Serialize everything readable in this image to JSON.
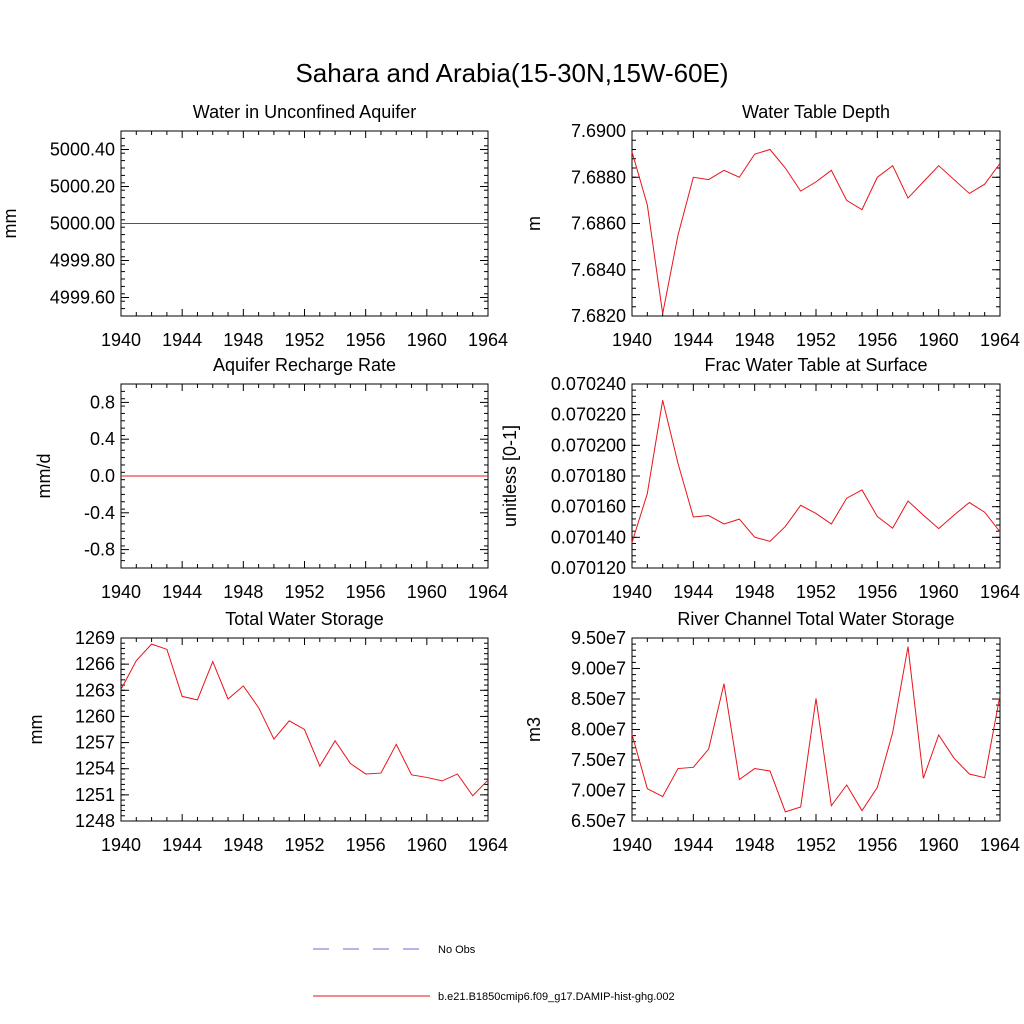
{
  "suptitle": "Sahara and Arabia(15-30N,15W-60E)",
  "legend": {
    "placement": "bottom-center",
    "entries": [
      {
        "label": "No Obs",
        "color": "#6b6bd6",
        "dash": "dashed"
      },
      {
        "label": "b.e21.B1850cmip6.f09_g17.DAMIP-hist-ghg.002",
        "color": "#e8141b",
        "dash": "solid"
      }
    ]
  },
  "colors": {
    "series": "#e8141b",
    "axis": "#000000"
  },
  "chart_data": [
    {
      "type": "line",
      "title": "Water in Unconfined Aquifer",
      "ylabel": "mm",
      "xlabel": "",
      "xlim": [
        1940,
        1964
      ],
      "ylim": [
        4999.5,
        5000.5
      ],
      "xticks": [
        "1940",
        "1944",
        "1948",
        "1952",
        "1956",
        "1960",
        "1964"
      ],
      "yticks": [
        "4999.60",
        "4999.80",
        "5000.00",
        "5000.20",
        "5000.40"
      ],
      "grid": false,
      "x": [
        1940,
        1941,
        1942,
        1943,
        1944,
        1945,
        1946,
        1947,
        1948,
        1949,
        1950,
        1951,
        1952,
        1953,
        1954,
        1955,
        1956,
        1957,
        1958,
        1959,
        1960,
        1961,
        1962,
        1963,
        1964
      ],
      "values": [
        5000,
        5000,
        5000,
        5000,
        5000,
        5000,
        5000,
        5000,
        5000,
        5000,
        5000,
        5000,
        5000,
        5000,
        5000,
        5000,
        5000,
        5000,
        5000,
        5000,
        5000,
        5000,
        5000,
        5000,
        5000
      ]
    },
    {
      "type": "line",
      "title": "Water Table Depth",
      "ylabel": "m",
      "xlabel": "",
      "xlim": [
        1940,
        1964
      ],
      "ylim": [
        7.682,
        7.69
      ],
      "xticks": [
        "1940",
        "1944",
        "1948",
        "1952",
        "1956",
        "1960",
        "1964"
      ],
      "yticks": [
        "7.6820",
        "7.6840",
        "7.6860",
        "7.6880",
        "7.6900"
      ],
      "grid": false,
      "x": [
        1940,
        1941,
        1942,
        1943,
        1944,
        1945,
        1946,
        1947,
        1948,
        1949,
        1950,
        1951,
        1952,
        1953,
        1954,
        1955,
        1956,
        1957,
        1958,
        1959,
        1960,
        1961,
        1962,
        1963,
        1964
      ],
      "values": [
        7.6891,
        7.6868,
        7.6821,
        7.6855,
        7.688,
        7.6879,
        7.6883,
        7.688,
        7.689,
        7.6892,
        7.6884,
        7.6874,
        7.6878,
        7.6883,
        7.687,
        7.6866,
        7.688,
        7.6885,
        7.6871,
        7.6878,
        7.6885,
        7.6879,
        7.6873,
        7.6877,
        7.6886
      ]
    },
    {
      "type": "line",
      "title": "Aquifer Recharge Rate",
      "ylabel": "mm/d",
      "xlabel": "",
      "xlim": [
        1940,
        1964
      ],
      "ylim": [
        -1.0,
        1.0
      ],
      "xticks": [
        "1940",
        "1944",
        "1948",
        "1952",
        "1956",
        "1960",
        "1964"
      ],
      "yticks": [
        "-0.8",
        "-0.4",
        "0.0",
        "0.4",
        "0.8"
      ],
      "grid": false,
      "x": [
        1940,
        1941,
        1942,
        1943,
        1944,
        1945,
        1946,
        1947,
        1948,
        1949,
        1950,
        1951,
        1952,
        1953,
        1954,
        1955,
        1956,
        1957,
        1958,
        1959,
        1960,
        1961,
        1962,
        1963,
        1964
      ],
      "values": [
        0,
        0,
        0,
        0,
        0,
        0,
        0,
        0,
        0,
        0,
        0,
        0,
        0,
        0,
        0,
        0,
        0,
        0,
        0,
        0,
        0,
        0,
        0,
        0,
        0
      ]
    },
    {
      "type": "line",
      "title": "Frac Water Table at Surface",
      "ylabel": "unitless [0-1]",
      "xlabel": "",
      "xlim": [
        1940,
        1964
      ],
      "ylim": [
        0.07012,
        0.07024
      ],
      "xticks": [
        "1940",
        "1944",
        "1948",
        "1952",
        "1956",
        "1960",
        "1964"
      ],
      "yticks": [
        "0.070120",
        "0.070140",
        "0.070160",
        "0.070180",
        "0.070200",
        "0.070220",
        "0.070240"
      ],
      "grid": false,
      "x": [
        1940,
        1941,
        1942,
        1943,
        1944,
        1945,
        1946,
        1947,
        1948,
        1949,
        1950,
        1951,
        1952,
        1953,
        1954,
        1955,
        1956,
        1957,
        1958,
        1959,
        1960,
        1961,
        1962,
        1963,
        1964
      ],
      "values": [
        0.0701366,
        0.0701686,
        0.0702294,
        0.0701882,
        0.0701533,
        0.0701542,
        0.0701487,
        0.0701519,
        0.0701401,
        0.0701374,
        0.0701471,
        0.0701609,
        0.0701556,
        0.0701487,
        0.0701655,
        0.0701709,
        0.0701536,
        0.070146,
        0.0701637,
        0.0701545,
        0.0701457,
        0.0701545,
        0.0701627,
        0.0701564,
        0.0701436
      ]
    },
    {
      "type": "line",
      "title": "Total Water Storage",
      "ylabel": "mm",
      "xlabel": "",
      "xlim": [
        1940,
        1964
      ],
      "ylim": [
        1248,
        1269
      ],
      "xticks": [
        "1940",
        "1944",
        "1948",
        "1952",
        "1956",
        "1960",
        "1964"
      ],
      "yticks": [
        "1248",
        "1251",
        "1254",
        "1257",
        "1260",
        "1263",
        "1266",
        "1269"
      ],
      "grid": false,
      "x": [
        1940,
        1941,
        1942,
        1943,
        1944,
        1945,
        1946,
        1947,
        1948,
        1949,
        1950,
        1951,
        1952,
        1953,
        1954,
        1955,
        1956,
        1957,
        1958,
        1959,
        1960,
        1961,
        1962,
        1963,
        1964
      ],
      "values": [
        1263.1,
        1266.4,
        1268.3,
        1267.7,
        1262.3,
        1261.9,
        1266.3,
        1262.0,
        1263.5,
        1261.0,
        1257.4,
        1259.5,
        1258.5,
        1254.3,
        1257.2,
        1254.6,
        1253.4,
        1253.5,
        1256.8,
        1253.3,
        1253.0,
        1252.6,
        1253.4,
        1250.9,
        1252.7
      ]
    },
    {
      "type": "line",
      "title": "River Channel Total Water Storage",
      "ylabel": "m3",
      "xlabel": "",
      "xlim": [
        1940,
        1964
      ],
      "ylim": [
        65000000,
        95000000
      ],
      "xticks": [
        "1940",
        "1944",
        "1948",
        "1952",
        "1956",
        "1960",
        "1964"
      ],
      "yticks": [
        "6.50e7",
        "7.00e7",
        "7.50e7",
        "8.00e7",
        "8.50e7",
        "9.00e7",
        "9.50e7"
      ],
      "grid": false,
      "x": [
        1940,
        1941,
        1942,
        1943,
        1944,
        1945,
        1946,
        1947,
        1948,
        1949,
        1950,
        1951,
        1952,
        1953,
        1954,
        1955,
        1956,
        1957,
        1958,
        1959,
        1960,
        1961,
        1962,
        1963,
        1964
      ],
      "values": [
        79200000,
        70300000,
        69000000,
        73600000,
        73800000,
        76800000,
        87500000,
        71800000,
        73600000,
        73200000,
        66500000,
        67300000,
        85100000,
        67500000,
        70900000,
        66700000,
        70500000,
        79500000,
        93600000,
        72000000,
        79100000,
        75300000,
        72700000,
        72100000,
        85600000
      ]
    }
  ]
}
